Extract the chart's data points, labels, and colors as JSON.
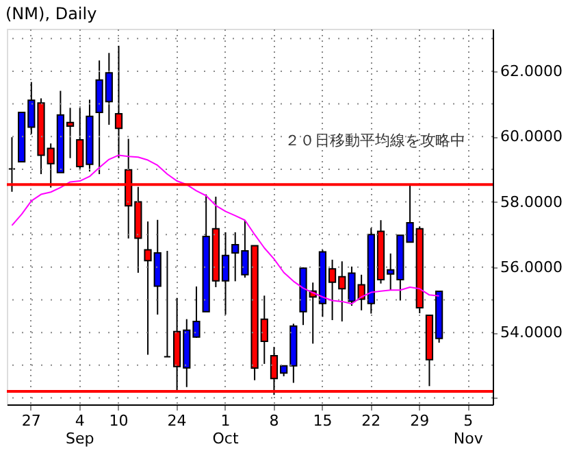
{
  "chart_data": {
    "type": "candlestick",
    "title": "(NM), Daily",
    "categories": [
      null,
      null,
      "27",
      null,
      null,
      null,
      null,
      "4\nSep",
      null,
      null,
      null,
      "10",
      null,
      null,
      null,
      null,
      null,
      "24",
      null,
      null,
      null,
      null,
      "1\nOct",
      null,
      null,
      null,
      null,
      "8",
      null,
      null,
      null,
      null,
      "15",
      null,
      null,
      null,
      null,
      "22",
      null,
      null,
      null,
      null,
      "29",
      null,
      null,
      null,
      null,
      "5\nNov",
      null,
      null
    ],
    "ohlc": [
      [
        59.01,
        59.98,
        58.31,
        59.01
      ],
      [
        59.23,
        60.74,
        59.23,
        60.74
      ],
      [
        60.29,
        61.67,
        60.08,
        61.11
      ],
      [
        61.03,
        61.17,
        58.85,
        59.43
      ],
      [
        59.64,
        59.79,
        58.44,
        59.17
      ],
      [
        58.9,
        61.4,
        58.9,
        60.66
      ],
      [
        60.43,
        60.88,
        59.34,
        60.32
      ],
      [
        59.9,
        60.88,
        58.97,
        59.08
      ],
      [
        59.15,
        61.13,
        58.93,
        60.62
      ],
      [
        60.74,
        62.33,
        58.85,
        61.73
      ],
      [
        61.07,
        62.56,
        60.36,
        61.95
      ],
      [
        60.7,
        62.78,
        59.34,
        60.25
      ],
      [
        58.98,
        59.93,
        56.88,
        57.88
      ],
      [
        58.0,
        58.46,
        55.83,
        56.89
      ],
      [
        56.53,
        57.4,
        53.32,
        56.2
      ],
      [
        55.42,
        57.45,
        54.55,
        56.44
      ],
      [
        53.26,
        56.5,
        53.26,
        53.26
      ],
      [
        54.03,
        55.06,
        52.23,
        52.96
      ],
      [
        52.92,
        54.41,
        52.33,
        54.07
      ],
      [
        53.86,
        55.41,
        53.84,
        54.34
      ],
      [
        54.64,
        58.23,
        54.64,
        56.94
      ],
      [
        57.18,
        58.16,
        55.39,
        55.58
      ],
      [
        55.58,
        57.07,
        54.55,
        56.36
      ],
      [
        56.44,
        57.07,
        55.57,
        56.69
      ],
      [
        55.77,
        57.44,
        55.68,
        56.5
      ],
      [
        56.66,
        56.66,
        52.54,
        52.91
      ],
      [
        54.41,
        55.13,
        53.04,
        53.73
      ],
      [
        53.29,
        53.56,
        52.09,
        52.59
      ],
      [
        52.76,
        52.98,
        52.66,
        52.98
      ],
      [
        52.98,
        54.27,
        52.46,
        54.2
      ],
      [
        54.64,
        55.99,
        54.23,
        55.97
      ],
      [
        55.27,
        55.53,
        53.66,
        55.09
      ],
      [
        54.89,
        56.53,
        54.48,
        56.47
      ],
      [
        55.95,
        56.23,
        54.38,
        55.54
      ],
      [
        55.71,
        56.18,
        54.34,
        55.34
      ],
      [
        54.96,
        56.02,
        54.82,
        55.82
      ],
      [
        55.46,
        55.77,
        54.68,
        55.02
      ],
      [
        54.89,
        57.2,
        54.58,
        57.0
      ],
      [
        57.1,
        57.44,
        55.5,
        55.62
      ],
      [
        55.79,
        56.42,
        55.3,
        55.92
      ],
      [
        55.62,
        56.98,
        54.98,
        56.98
      ],
      [
        56.77,
        58.51,
        56.77,
        57.36
      ],
      [
        57.18,
        57.25,
        54.59,
        54.76
      ],
      [
        54.53,
        54.53,
        52.36,
        53.17
      ],
      [
        53.82,
        55.26,
        53.69,
        55.26
      ],
      null,
      null,
      null,
      null,
      null
    ],
    "colors": [
      "#000000",
      "#0000ff",
      "#0000ff",
      "#ff0000",
      "#ff0000",
      "#0000ff",
      "#ff0000",
      "#ff0000",
      "#0000ff",
      "#0000ff",
      "#0000ff",
      "#ff0000",
      "#ff0000",
      "#ff0000",
      "#ff0000",
      "#0000ff",
      "#000000",
      "#ff0000",
      "#0000ff",
      "#0000ff",
      "#0000ff",
      "#ff0000",
      "#0000ff",
      "#0000ff",
      "#0000ff",
      "#ff0000",
      "#ff0000",
      "#ff0000",
      "#0000ff",
      "#0000ff",
      "#0000ff",
      "#ff0000",
      "#0000ff",
      "#ff0000",
      "#ff0000",
      "#0000ff",
      "#ff0000",
      "#0000ff",
      "#ff0000",
      "#0000ff",
      "#0000ff",
      "#0000ff",
      "#ff0000",
      "#ff0000",
      "#0000ff",
      null,
      null,
      null,
      null,
      null
    ],
    "series": [
      {
        "type": "line",
        "color": "#ff00ff",
        "values": [
          57.28,
          57.62,
          58.03,
          58.23,
          58.3,
          58.44,
          58.61,
          58.64,
          58.78,
          59.05,
          59.3,
          59.43,
          59.39,
          59.37,
          59.28,
          59.12,
          58.85,
          58.64,
          58.53,
          58.34,
          58.19,
          57.89,
          57.71,
          57.58,
          57.44,
          57.0,
          56.59,
          56.25,
          55.84,
          55.57,
          55.36,
          55.22,
          55.09,
          54.98,
          54.95,
          54.88,
          55.09,
          55.23,
          55.27,
          55.3,
          55.3,
          55.39,
          55.34,
          55.15,
          55.12,
          null,
          null,
          null,
          null,
          null
        ]
      }
    ],
    "ylim": [
      51.8,
      63.3
    ],
    "yticks": [
      {
        "value": 52,
        "label": null
      },
      {
        "value": 53,
        "label": null
      },
      {
        "value": 54,
        "label": "54.0000"
      },
      {
        "value": 55,
        "label": null
      },
      {
        "value": 56,
        "label": "56.0000"
      },
      {
        "value": 57,
        "label": null
      },
      {
        "value": 58,
        "label": "58.0000"
      },
      {
        "value": 59,
        "label": null
      },
      {
        "value": 60,
        "label": "60.0000"
      },
      {
        "value": 61,
        "label": null
      },
      {
        "value": 62,
        "label": "62.0000"
      },
      {
        "value": 63,
        "label": null
      }
    ],
    "grid": true,
    "ref_lines": [
      {
        "axis": "y",
        "value": 58.53,
        "color": "#ff0000"
      },
      {
        "axis": "y",
        "value": 52.2,
        "color": "#ff0000"
      }
    ],
    "annotations": [
      "２０日移動平均線を攻略中"
    ]
  }
}
